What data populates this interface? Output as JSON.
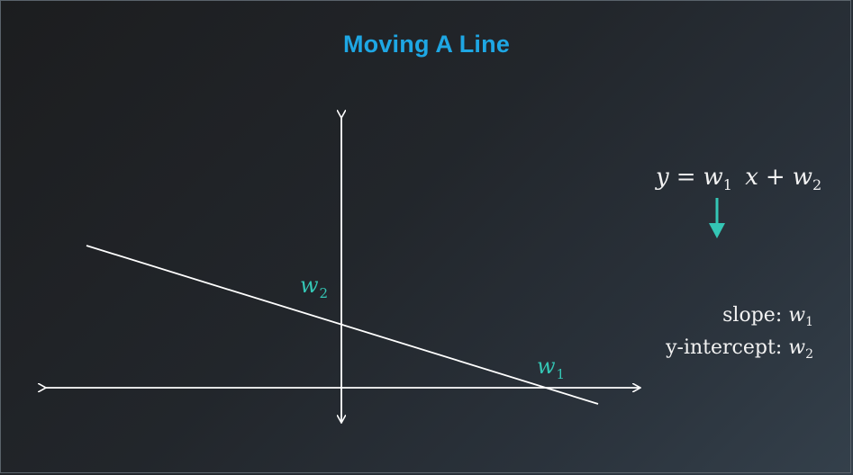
{
  "title": "Moving A Line",
  "labels": {
    "intercept": {
      "var": "w",
      "sub": "2"
    },
    "slope": {
      "var": "w",
      "sub": "1"
    }
  },
  "equation": {
    "lhs": "y",
    "eq": "=",
    "w1_var": "w",
    "w1_sub": "1",
    "x": "x",
    "plus": "+",
    "w2_var": "w",
    "w2_sub": "2"
  },
  "description": {
    "slope_label": "slope: ",
    "slope_var": "w",
    "slope_sub": "1",
    "intercept_label": "y-intercept: ",
    "intercept_var": "w",
    "intercept_sub": "2"
  },
  "colors": {
    "title": "#1ea7e4",
    "accent": "#34c6b5",
    "line": "#ffffff"
  },
  "icons": {
    "down_arrow": "down-arrow-icon"
  }
}
